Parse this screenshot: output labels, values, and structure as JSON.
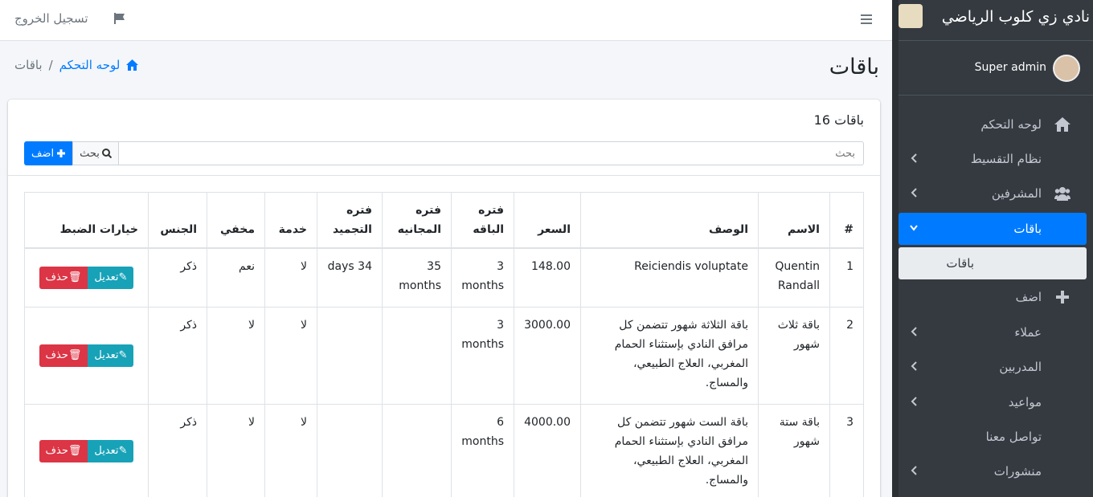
{
  "header": {
    "logout": "تسجيل الخروج"
  },
  "sidebar": {
    "brand": "نادي زي كلوب الرياضي",
    "user": "Super admin",
    "menu": [
      {
        "label": "لوحه التحكم",
        "icon": "home"
      },
      {
        "label": "نظام التقسيط",
        "arrow": "left"
      },
      {
        "label": "المشرفين",
        "icon": "users",
        "arrow": "left"
      },
      {
        "label": "باقات",
        "arrow": "down",
        "active": true
      },
      {
        "label": "باقات",
        "sub": true
      },
      {
        "label": "اضف",
        "icon": "plus"
      },
      {
        "label": "عملاء",
        "arrow": "left"
      },
      {
        "label": "المدربين",
        "arrow": "left"
      },
      {
        "label": "مواعيد",
        "arrow": "left"
      },
      {
        "label": "تواصل معنا"
      },
      {
        "label": "منشورات",
        "arrow": "left"
      }
    ]
  },
  "page": {
    "title": "باقات",
    "breadcrumb": [
      "لوحه التحكم",
      "باقات"
    ]
  },
  "card": {
    "title": "باقات 16",
    "search_placeholder": "بحث",
    "search_button": "بحث",
    "add_button": "اضف"
  },
  "table": {
    "headers": [
      "#",
      "الاسم",
      "الوصف",
      "السعر",
      "فتره الباقه",
      "فتره المجانيه",
      "فتره التجميد",
      "خدمة",
      "مخفي",
      "الجنس",
      "خيارات الضبط"
    ],
    "edit": "تعديل",
    "delete": "حذف",
    "rows": [
      [
        "1",
        "Quentin Randall",
        "Reiciendis voluptate",
        "148.00",
        "3 months",
        "35 months",
        "34 days",
        "لا",
        "نعم",
        "ذكر"
      ],
      [
        "2",
        "باقة ثلاث شهور",
        "باقة الثلاثة شهور تتضمن كل مرافق النادي بإستثناء الحمام المغربي، العلاج الطبيعي، والمساج.",
        "3000.00",
        "3 months",
        null,
        null,
        "لا",
        "لا",
        "ذكر"
      ],
      [
        "3",
        "باقة ستة شهور",
        "باقة الست شهور تتضمن كل مرافق النادي بإستثناء الحمام المغربي، العلاج الطبيعي، والمساج.",
        "4000.00",
        "6 months",
        null,
        null,
        "لا",
        "لا",
        "ذكر"
      ]
    ]
  }
}
